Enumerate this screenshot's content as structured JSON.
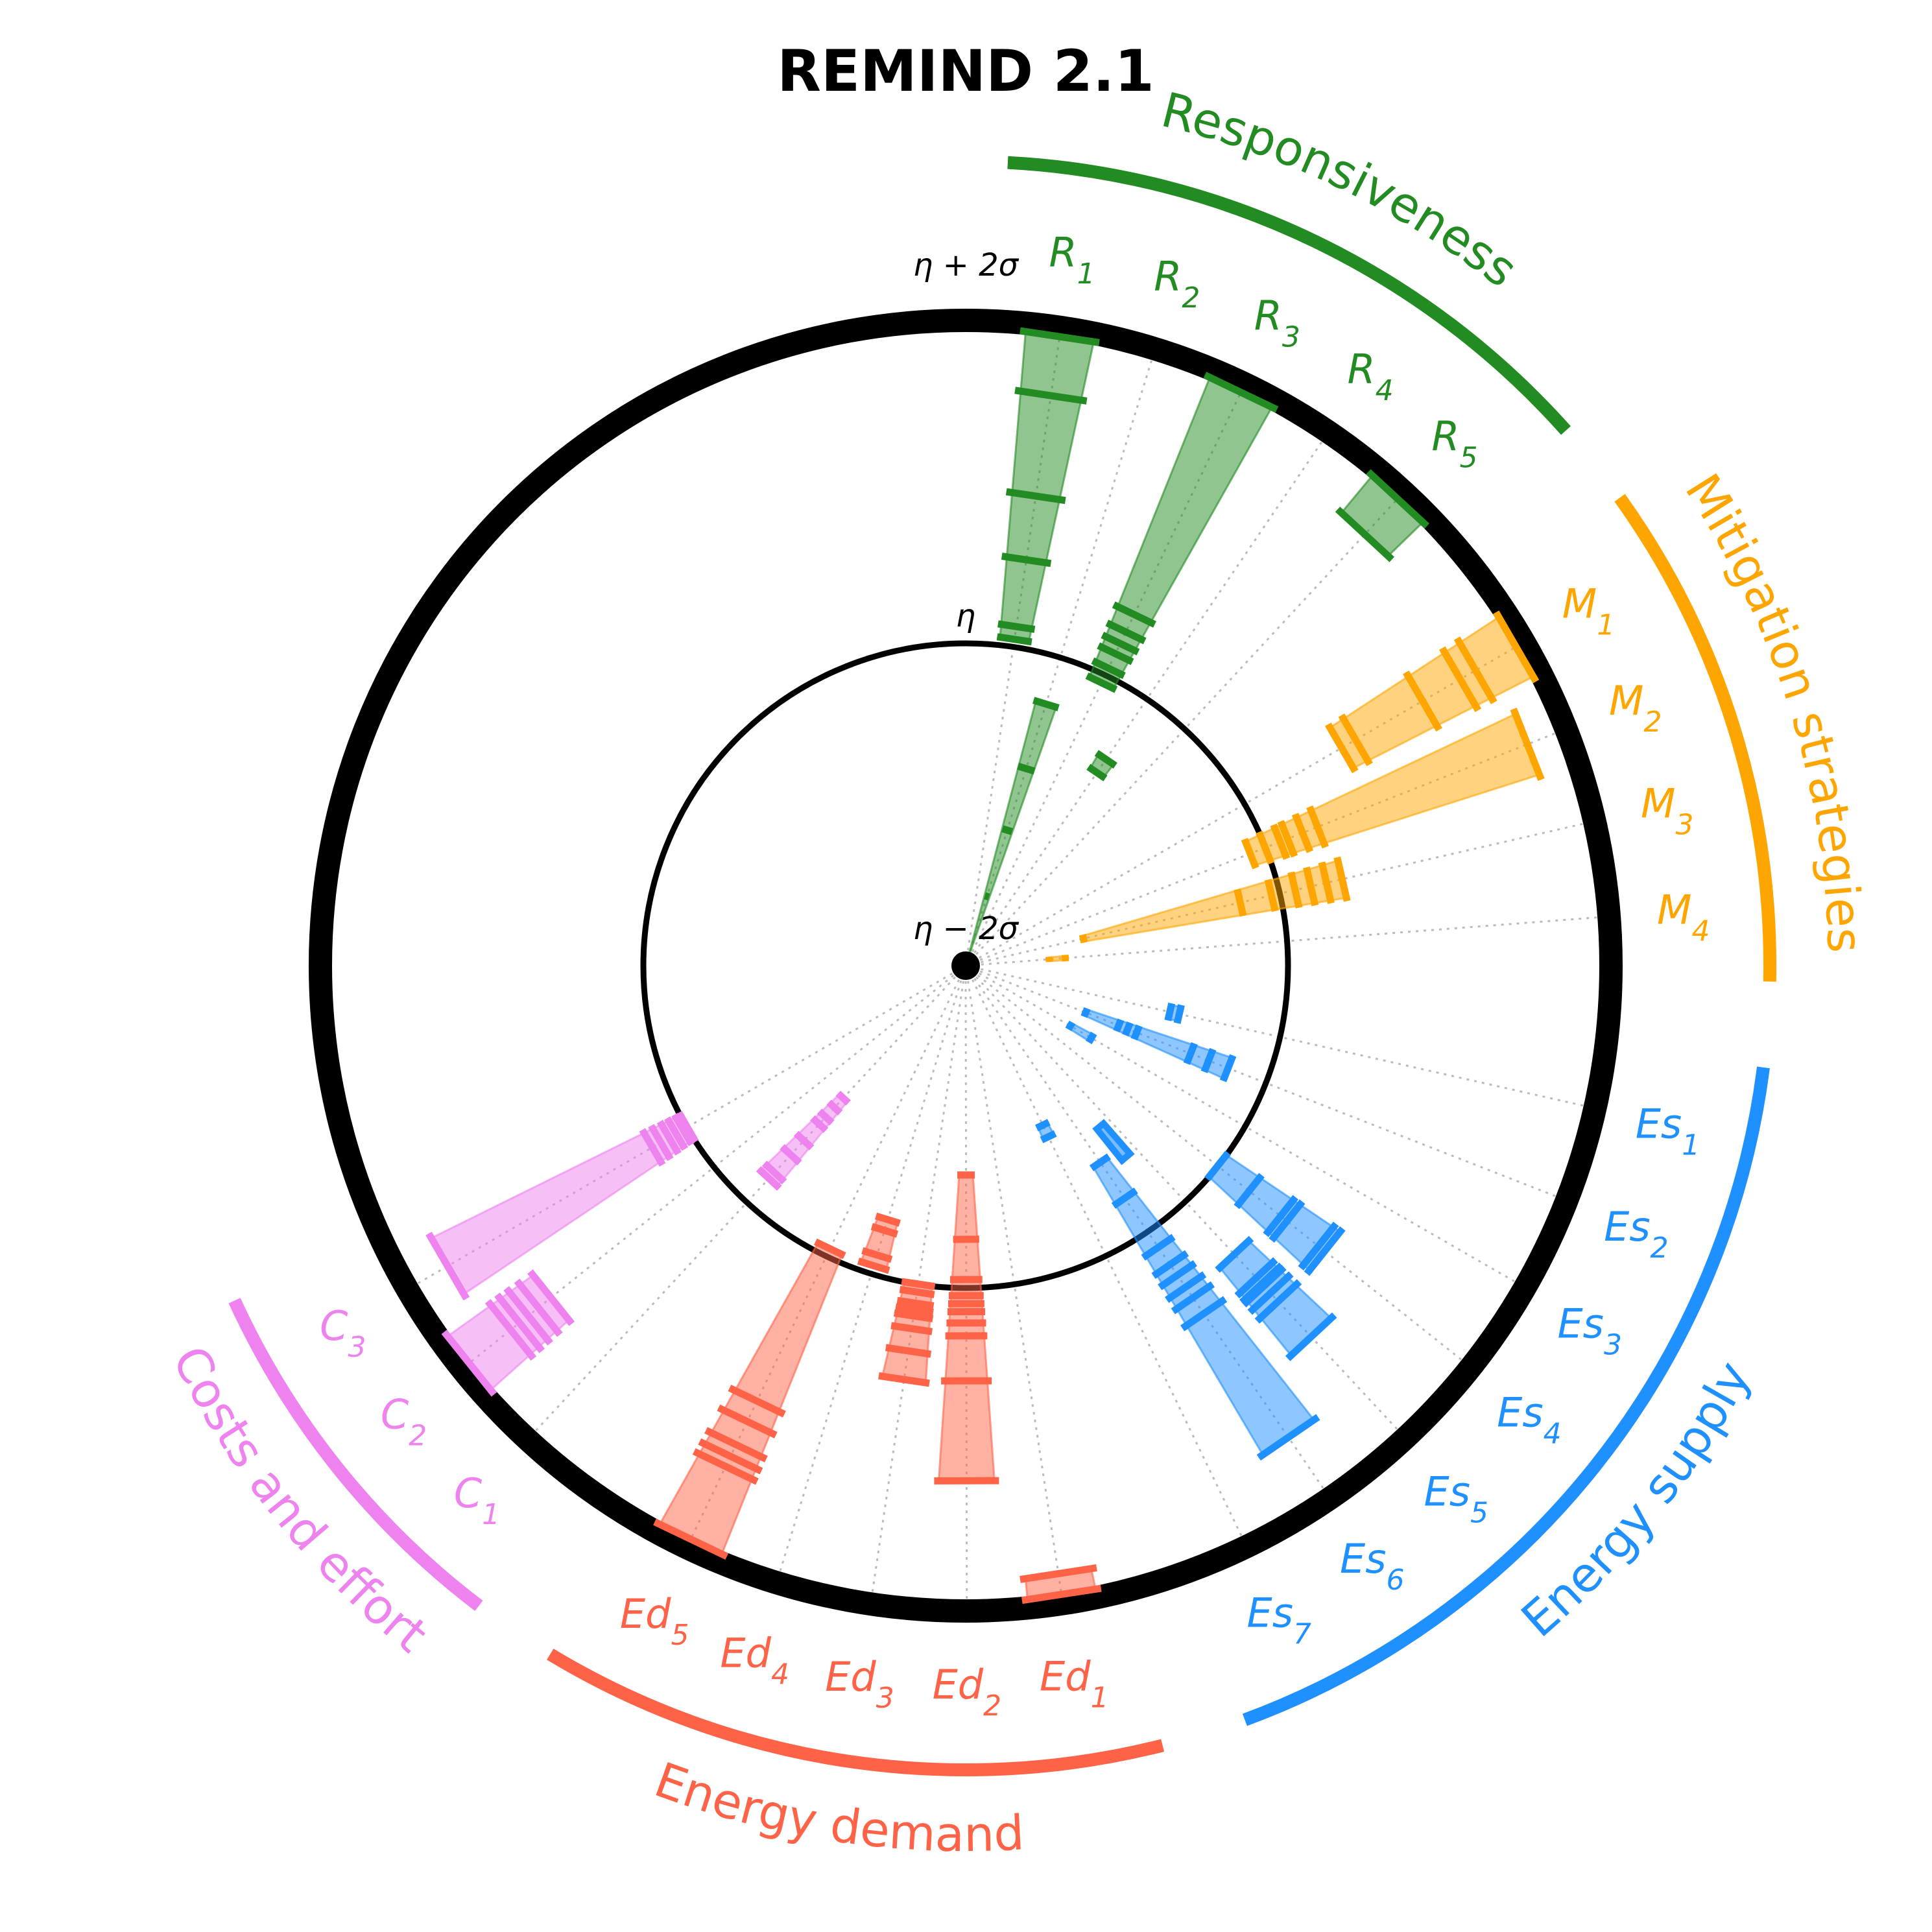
{
  "chart_data": {
    "type": "radial-interval",
    "title": "REMIND 2.1",
    "reference_labels": {
      "center": "η − 2σ",
      "inner": "η",
      "outer": "η + 2σ"
    },
    "scale": {
      "center": -2,
      "inner": 0,
      "outer": 2
    },
    "categories": [
      {
        "name": "Responsiveness",
        "color": "#228B22",
        "indicators": [
          {
            "label": "R",
            "sub": "1",
            "ticks": [
              0.05,
              0.13,
              0.55,
              0.95,
              1.58,
              1.95
            ],
            "extra": null
          },
          {
            "label": "R",
            "sub": "2",
            "ticks": [
              -1.95,
              -1.55,
              -1.12,
              -0.72,
              -0.3
            ],
            "extra": null
          },
          {
            "label": "R",
            "sub": "3",
            "ticks": [
              -0.05,
              0.05,
              0.15,
              0.22,
              0.3,
              0.42,
              1.95
            ],
            "extra": null
          },
          {
            "label": "R",
            "sub": "4",
            "ticks": [
              -0.55,
              -0.45
            ],
            "extra": null
          },
          {
            "label": "R",
            "sub": "5",
            "ticks": [
              1.65,
              1.95
            ],
            "extra": null
          }
        ]
      },
      {
        "name": "Mitigation strategies",
        "color": "#FFA500",
        "indicators": [
          {
            "label": "M",
            "sub": "1",
            "ticks": [
              0.7,
              0.8,
              1.28,
              1.55,
              1.66,
              1.95
            ],
            "extra": null
          },
          {
            "label": "M",
            "sub": "2",
            "ticks": [
              -0.1,
              0.0,
              0.1,
              0.15,
              0.25,
              0.35,
              1.75
            ],
            "extra": null
          },
          {
            "label": "M",
            "sub": "3",
            "ticks": [
              -1.25,
              -0.25,
              -0.05,
              0.1,
              0.2,
              0.3,
              0.4
            ],
            "extra": null
          },
          {
            "label": "M",
            "sub": "4",
            "ticks": [
              -1.48,
              -1.38
            ],
            "extra": null
          }
        ]
      },
      {
        "name": "Energy supply",
        "color": "#1E90FF",
        "indicators": [
          {
            "label": "Es",
            "sub": "1",
            "ticks": [
              -0.7,
              -0.64
            ],
            "extra": null
          },
          {
            "label": "Es",
            "sub": "2",
            "ticks": [
              -1.2,
              -0.98,
              -0.92,
              -0.86,
              -0.5,
              -0.38,
              -0.25
            ],
            "extra": null
          },
          {
            "label": "Es",
            "sub": "3",
            "ticks": [
              -1.25,
              -1.1
            ],
            "extra": null
          },
          {
            "label": "Es",
            "sub": "4",
            "ticks": [
              0.0,
              0.25,
              0.5,
              0.55,
              0.8,
              0.85
            ],
            "extra": null
          },
          {
            "label": "Es",
            "sub": "5",
            "ticks": [
              0.45,
              0.65,
              0.7,
              0.72,
              0.78,
              0.85,
              1.15
            ],
            "extra": [
              -0.7,
              -0.45
            ]
          },
          {
            "label": "Es",
            "sub": "6",
            "ticks": [
              -0.52,
              -0.25,
              0.12,
              0.25,
              0.33,
              0.42,
              0.5,
              0.62,
              1.55
            ],
            "extra": null
          },
          {
            "label": "Es",
            "sub": "7",
            "ticks": [
              -0.9,
              -0.82
            ],
            "extra": null
          }
        ]
      },
      {
        "name": "Energy demand",
        "color": "#FF6347",
        "indicators": [
          {
            "label": "Ed",
            "sub": "1",
            "ticks": [
              1.82,
              1.95
            ],
            "extra": null
          },
          {
            "label": "Ed",
            "sub": "2",
            "ticks": [
              -0.7,
              -0.3,
              -0.05,
              0.05,
              0.1,
              0.15,
              0.22,
              0.3,
              0.58,
              1.2
            ],
            "extra": null
          },
          {
            "label": "Ed",
            "sub": "3",
            "ticks": [
              0.0,
              0.05,
              0.12,
              0.16,
              0.2,
              0.28,
              0.42,
              0.6
            ],
            "extra": null
          },
          {
            "label": "Ed",
            "sub": "4",
            "ticks": [
              -0.35,
              -0.28,
              -0.12,
              -0.05
            ],
            "extra": null
          },
          {
            "label": "Ed",
            "sub": "5",
            "ticks": [
              -0.05,
              1.0,
              1.14,
              1.3,
              1.38,
              1.45,
              1.95
            ],
            "extra": null
          }
        ]
      },
      {
        "name": "Costs and effort",
        "color": "#EE82EE",
        "indicators": [
          {
            "label": "C",
            "sub": "1",
            "ticks": [
              -0.88,
              -0.8,
              -0.72,
              -0.66,
              -0.52,
              -0.4,
              -0.25,
              -0.2
            ],
            "extra": null
          },
          {
            "label": "C",
            "sub": "2",
            "ticks": [
              1.3,
              1.4,
              1.48,
              1.55,
              1.62,
              1.95
            ],
            "extra": null
          },
          {
            "label": "C",
            "sub": "3",
            "ticks": [
              0.0,
              0.03,
              0.08,
              0.13,
              0.19,
              0.25,
              1.72
            ],
            "extra": null
          }
        ]
      }
    ]
  }
}
